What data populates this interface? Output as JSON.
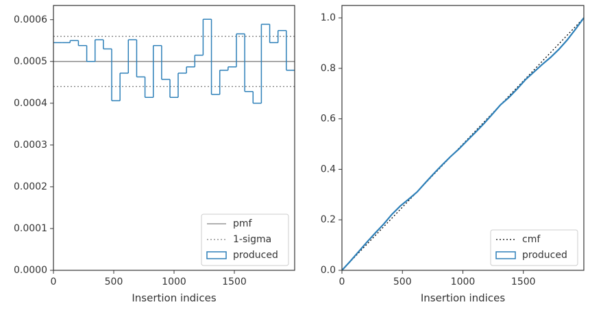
{
  "chart_data": [
    {
      "type": "histogram",
      "x_label": "Insertion indices",
      "bins": [
        0,
        69,
        138,
        207,
        276,
        345,
        414,
        483,
        552,
        621,
        690,
        759,
        828,
        897,
        966,
        1034,
        1103,
        1172,
        1241,
        1310,
        1379,
        1448,
        1517,
        1586,
        1655,
        1724,
        1793,
        1862,
        1931,
        2000
      ],
      "series": [
        {
          "name": "produced",
          "color": "#2c7fb8",
          "values": [
            0.000545,
            0.000545,
            0.00055,
            0.000538,
            0.0005,
            0.000552,
            0.00053,
            0.000406,
            0.000472,
            0.000552,
            0.000463,
            0.000414,
            0.000538,
            0.000457,
            0.000414,
            0.000472,
            0.000487,
            0.000515,
            0.000601,
            0.000421,
            0.000479,
            0.000487,
            0.000566,
            0.000428,
            0.0004,
            0.000589,
            0.000545,
            0.000574,
            0.000479
          ]
        }
      ],
      "reference_lines": [
        {
          "name": "pmf",
          "color": "#808080",
          "style": "solid",
          "values": [
            0.0005
          ]
        },
        {
          "name": "1-sigma",
          "color": "#808080",
          "style": "dotted",
          "values": [
            0.00044,
            0.00056
          ]
        }
      ],
      "xlim": [
        0,
        2000
      ],
      "xticks": [
        0,
        500,
        1000,
        1500
      ],
      "ylim": [
        0,
        0.000634
      ],
      "yticks": [
        {
          "value": 0,
          "label": "0.0000"
        },
        {
          "value": 0.0001,
          "label": "0.0001"
        },
        {
          "value": 0.0002,
          "label": "0.0002"
        },
        {
          "value": 0.0003,
          "label": "0.0003"
        },
        {
          "value": 0.0004,
          "label": "0.0004"
        },
        {
          "value": 0.0005,
          "label": "0.0005"
        },
        {
          "value": 0.0006,
          "label": "0.0006"
        }
      ],
      "legend": "lower right"
    },
    {
      "type": "line",
      "x_label": "Insertion indices",
      "series": [
        {
          "name": "cmf",
          "color": "#000000",
          "style": "dotted",
          "x": [
            0,
            2000
          ],
          "values": [
            0,
            1
          ]
        },
        {
          "name": "produced",
          "color": "#2c7fb8",
          "style": "solid",
          "x": [
            0,
            69,
            138,
            207,
            276,
            345,
            414,
            483,
            552,
            621,
            690,
            759,
            828,
            897,
            966,
            1034,
            1103,
            1172,
            1241,
            1310,
            1379,
            1448,
            1517,
            1586,
            1655,
            1724,
            1793,
            1862,
            1931,
            2000
          ],
          "values": [
            0,
            0.036,
            0.074,
            0.112,
            0.148,
            0.183,
            0.222,
            0.255,
            0.282,
            0.31,
            0.347,
            0.383,
            0.417,
            0.45,
            0.48,
            0.513,
            0.546,
            0.58,
            0.617,
            0.655,
            0.684,
            0.718,
            0.755,
            0.785,
            0.815,
            0.843,
            0.875,
            0.912,
            0.955,
            1.0
          ]
        }
      ],
      "xlim": [
        0,
        2000
      ],
      "xticks": [
        0,
        500,
        1000,
        1500
      ],
      "ylim": [
        0,
        1.049
      ],
      "yticks": [
        {
          "value": 0,
          "label": "0.0"
        },
        {
          "value": 0.2,
          "label": "0.2"
        },
        {
          "value": 0.4,
          "label": "0.4"
        },
        {
          "value": 0.6,
          "label": "0.6"
        },
        {
          "value": 0.8,
          "label": "0.8"
        },
        {
          "value": 1.0,
          "label": "1.0"
        }
      ],
      "legend": "lower right"
    }
  ]
}
